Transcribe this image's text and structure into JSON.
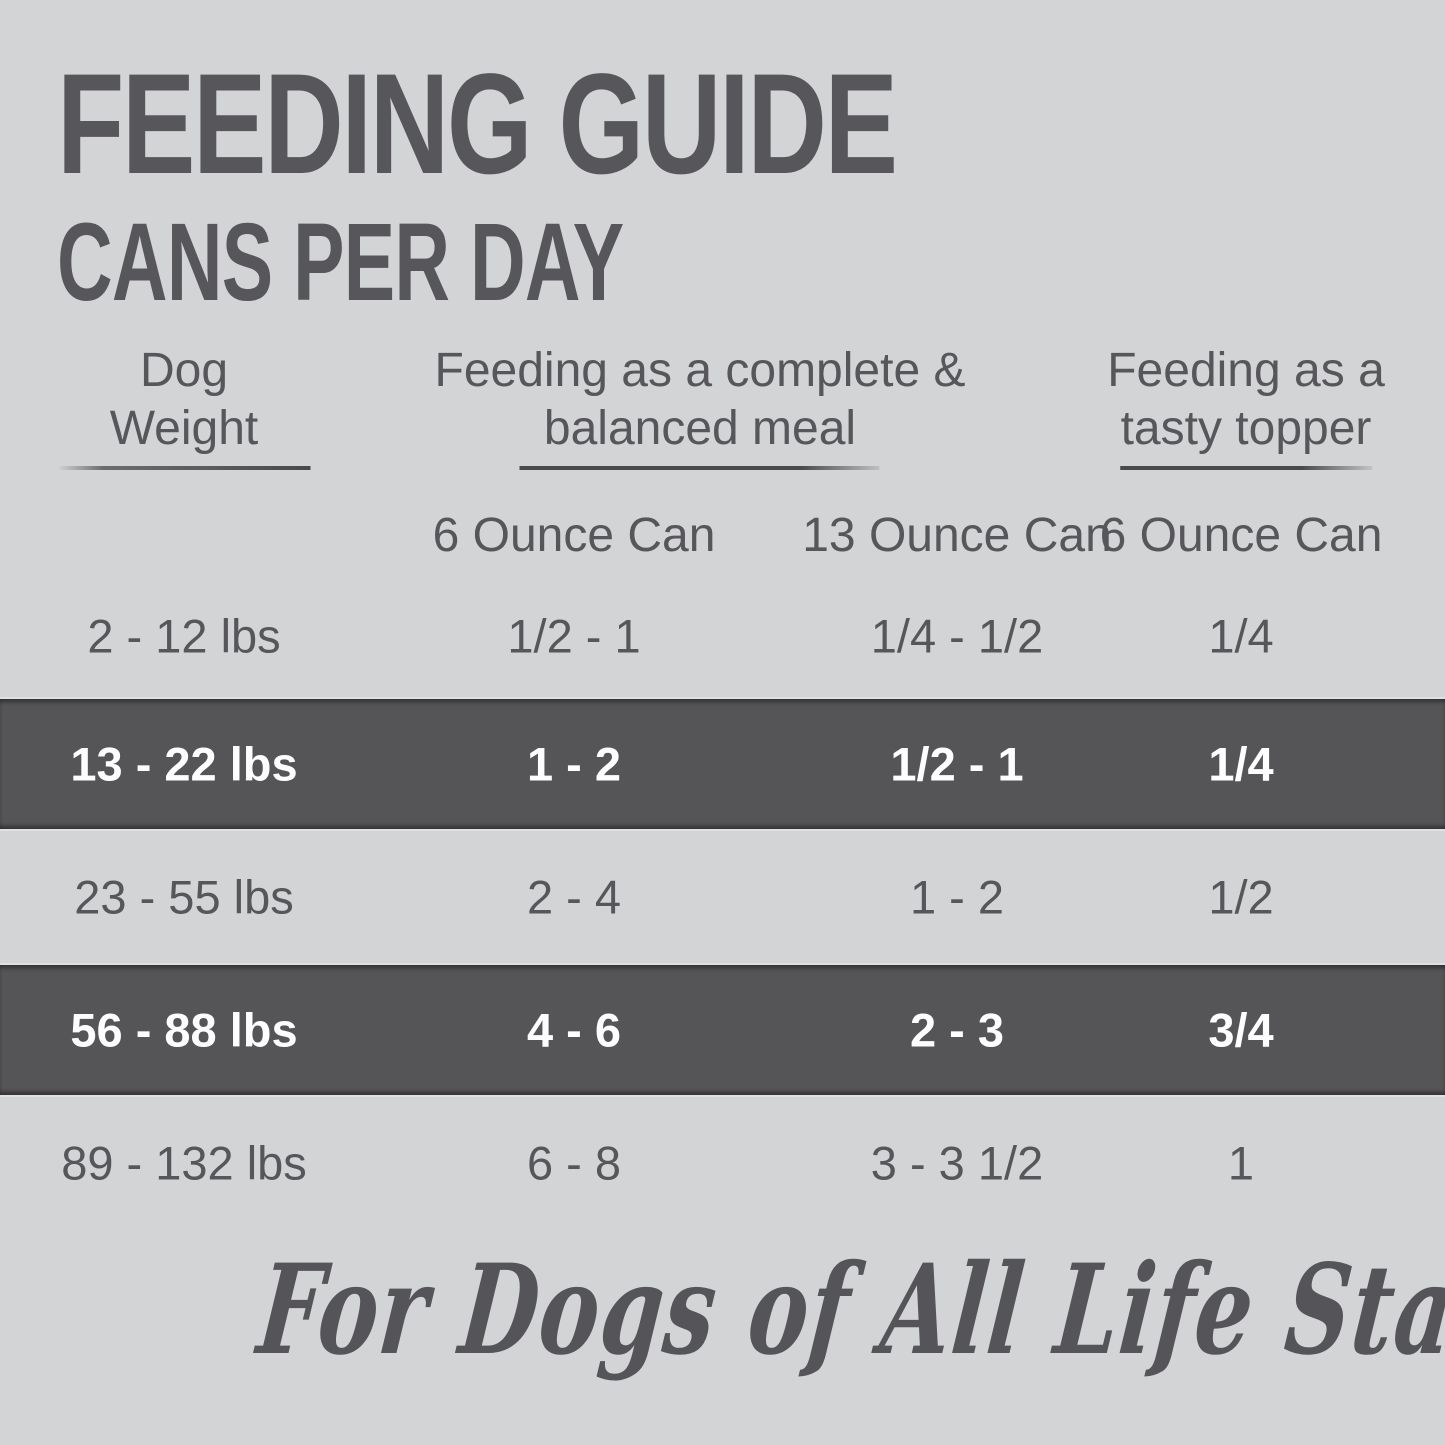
{
  "title": "FEEDING GUIDE",
  "subtitle": "CANS PER DAY",
  "table": {
    "header_groups": [
      {
        "line1": "Dog",
        "line2": "Weight"
      },
      {
        "line1": "Feeding as a complete &",
        "line2": "balanced meal"
      },
      {
        "line1": "Feeding as a",
        "line2": "tasty topper"
      }
    ],
    "subheaders": [
      "6 Ounce Can",
      "13 Ounce Can",
      "6 Ounce Can"
    ],
    "rows": [
      {
        "weight": "2 - 12 lbs",
        "meal_6oz": "1/2 - 1",
        "meal_13oz": "1/4 - 1/2",
        "topper_6oz": "1/4",
        "highlighted": false
      },
      {
        "weight": "13 - 22 lbs",
        "meal_6oz": "1 - 2",
        "meal_13oz": "1/2 - 1",
        "topper_6oz": "1/4",
        "highlighted": true
      },
      {
        "weight": "23 - 55 lbs",
        "meal_6oz": "2 - 4",
        "meal_13oz": "1 - 2",
        "topper_6oz": "1/2",
        "highlighted": false
      },
      {
        "weight": "56 - 88 lbs",
        "meal_6oz": "4 - 6",
        "meal_13oz": "2 - 3",
        "topper_6oz": "3/4",
        "highlighted": true
      },
      {
        "weight": "89 - 132 lbs",
        "meal_6oz": "6 - 8",
        "meal_13oz": "3 - 3 1/2",
        "topper_6oz": "1",
        "highlighted": false
      }
    ]
  },
  "footer": {
    "tagline": "For Dogs of All Life Stages"
  },
  "colors": {
    "background": "#d3d4d6",
    "text": "#57565a",
    "band": "#555456",
    "band_text": "#fdfdfe"
  }
}
